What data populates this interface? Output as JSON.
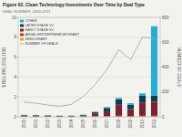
{
  "chart_data": {
    "type": "bar",
    "stacked": true,
    "title": "Figure 62. Clean Technology Investments Over Time by Deal Type",
    "subtitle": "DEAL NUMBER, 2000-2011",
    "categories": [
      "2000",
      "2001",
      "2002",
      "2003",
      "2004",
      "2005",
      "2006",
      "2007",
      "2008",
      "2009",
      "2010",
      "2011"
    ],
    "series": [
      {
        "name": "SEED/GRANT",
        "color": "#e8a020",
        "values": [
          0.03,
          0.03,
          0.03,
          0.02,
          0.02,
          0.03,
          0.04,
          0.05,
          0.05,
          0.04,
          0.05,
          0.05
        ]
      },
      {
        "name": "ANGEL/ENTREPRENEUR/GRANT",
        "color": "#c0392b",
        "values": [
          0.02,
          0.02,
          0.02,
          0.01,
          0.01,
          0.02,
          0.03,
          0.04,
          0.06,
          0.04,
          0.06,
          0.06
        ]
      },
      {
        "name": "EARLY STAGE VC",
        "color": "#7b2232",
        "values": [
          0.08,
          0.07,
          0.06,
          0.05,
          0.05,
          0.08,
          0.25,
          0.45,
          1.1,
          0.7,
          1.3,
          1.4
        ]
      },
      {
        "name": "LATER STAGE VC",
        "color": "#0d3d52",
        "values": [
          0.05,
          0.05,
          0.04,
          0.03,
          0.03,
          0.06,
          0.15,
          0.35,
          0.55,
          0.45,
          0.7,
          0.6
        ]
      },
      {
        "name": "OTHER",
        "color": "#2bacd1",
        "values": [
          0.02,
          0.02,
          0.02,
          0.01,
          0.01,
          0.02,
          0.05,
          0.1,
          0.15,
          0.15,
          0.25,
          7.0
        ]
      },
      {
        "name": "NUMBER OF DEALS",
        "type": "line",
        "axis": "y2",
        "color": "#b0b0b0",
        "values": [
          120,
          110,
          95,
          85,
          100,
          165,
          260,
          380,
          540,
          460,
          640,
          630
        ]
      }
    ],
    "y_label": "$ BILLION, 2011 USD",
    "y2_label": "NUMBER OF DEALS",
    "ylim": [
      0,
      10
    ],
    "yticks": [
      0,
      2,
      4,
      6,
      8,
      10
    ],
    "y2lim": [
      0,
      800
    ],
    "y2ticks": [
      0,
      200,
      400,
      600,
      800
    ],
    "grid": true,
    "legend": "upper left"
  }
}
